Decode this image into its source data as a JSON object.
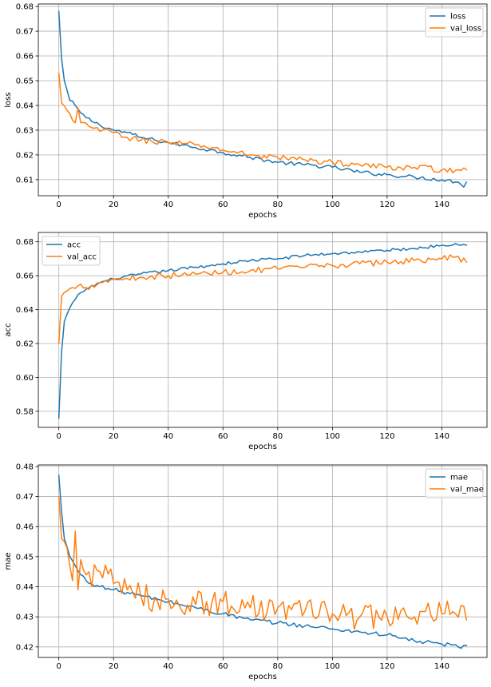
{
  "chart_data": [
    {
      "type": "line",
      "xlabel": "epochs",
      "ylabel": "loss",
      "xlim": [
        -7.5,
        156.5
      ],
      "ylim": [
        0.6035,
        0.681
      ],
      "xticks": [
        0,
        20,
        40,
        60,
        80,
        100,
        120,
        140
      ],
      "yticks": [
        0.61,
        0.62,
        0.63,
        0.64,
        0.65,
        0.66,
        0.67,
        0.68
      ],
      "ytick_labels": [
        "0.61",
        "0.62",
        "0.63",
        "0.64",
        "0.65",
        "0.66",
        "0.67",
        "0.68"
      ],
      "grid": true,
      "legend": "top-right",
      "series": [
        {
          "name": "loss",
          "color": "#1f77b4",
          "keypoints": [
            [
              0,
              0.678
            ],
            [
              1,
              0.659
            ],
            [
              2,
              0.65
            ],
            [
              4,
              0.642
            ],
            [
              6,
              0.64
            ],
            [
              8,
              0.637
            ],
            [
              10,
              0.635
            ],
            [
              15,
              0.632
            ],
            [
              20,
              0.63
            ],
            [
              25,
              0.629
            ],
            [
              30,
              0.627
            ],
            [
              35,
              0.626
            ],
            [
              40,
              0.625
            ],
            [
              45,
              0.624
            ],
            [
              50,
              0.623
            ],
            [
              55,
              0.622
            ],
            [
              60,
              0.621
            ],
            [
              70,
              0.619
            ],
            [
              80,
              0.617
            ],
            [
              90,
              0.616
            ],
            [
              100,
              0.615
            ],
            [
              110,
              0.613
            ],
            [
              120,
              0.612
            ],
            [
              130,
              0.611
            ],
            [
              140,
              0.61
            ],
            [
              146,
              0.609
            ],
            [
              147,
              0.608
            ],
            [
              148,
              0.607
            ],
            [
              149,
              0.609
            ]
          ],
          "noise": 0.0008
        },
        {
          "name": "val_loss",
          "color": "#ff7f0e",
          "keypoints": [
            [
              0,
              0.653
            ],
            [
              1,
              0.641
            ],
            [
              3,
              0.638
            ],
            [
              5,
              0.634
            ],
            [
              6,
              0.633
            ],
            [
              7,
              0.639
            ],
            [
              8,
              0.633
            ],
            [
              12,
              0.631
            ],
            [
              16,
              0.63
            ],
            [
              20,
              0.629
            ],
            [
              25,
              0.627
            ],
            [
              30,
              0.626
            ],
            [
              40,
              0.625
            ],
            [
              50,
              0.624
            ],
            [
              60,
              0.622
            ],
            [
              70,
              0.62
            ],
            [
              80,
              0.619
            ],
            [
              90,
              0.618
            ],
            [
              100,
              0.617
            ],
            [
              110,
              0.616
            ],
            [
              120,
              0.615
            ],
            [
              130,
              0.615
            ],
            [
              140,
              0.614
            ],
            [
              146,
              0.614
            ],
            [
              149,
              0.614
            ]
          ],
          "noise": 0.0012
        }
      ]
    },
    {
      "type": "line",
      "xlabel": "epochs",
      "ylabel": "acc",
      "xlim": [
        -7.5,
        156.5
      ],
      "ylim": [
        0.5705,
        0.6855
      ],
      "xticks": [
        0,
        20,
        40,
        60,
        80,
        100,
        120,
        140
      ],
      "yticks": [
        0.58,
        0.6,
        0.62,
        0.64,
        0.66,
        0.68
      ],
      "ytick_labels": [
        "0.58",
        "0.60",
        "0.62",
        "0.64",
        "0.66",
        "0.68"
      ],
      "grid": true,
      "legend": "top-left",
      "series": [
        {
          "name": "acc",
          "color": "#1f77b4",
          "keypoints": [
            [
              0,
              0.576
            ],
            [
              1,
              0.615
            ],
            [
              2,
              0.633
            ],
            [
              4,
              0.641
            ],
            [
              6,
              0.646
            ],
            [
              8,
              0.65
            ],
            [
              10,
              0.652
            ],
            [
              15,
              0.656
            ],
            [
              20,
              0.658
            ],
            [
              30,
              0.661
            ],
            [
              40,
              0.663
            ],
            [
              50,
              0.665
            ],
            [
              60,
              0.667
            ],
            [
              70,
              0.669
            ],
            [
              80,
              0.67
            ],
            [
              90,
              0.672
            ],
            [
              100,
              0.673
            ],
            [
              110,
              0.674
            ],
            [
              120,
              0.675
            ],
            [
              130,
              0.676
            ],
            [
              140,
              0.678
            ],
            [
              145,
              0.679
            ],
            [
              149,
              0.678
            ]
          ],
          "noise": 0.0009
        },
        {
          "name": "val_acc",
          "color": "#ff7f0e",
          "keypoints": [
            [
              0,
              0.62
            ],
            [
              1,
              0.648
            ],
            [
              3,
              0.651
            ],
            [
              5,
              0.653
            ],
            [
              8,
              0.655
            ],
            [
              10,
              0.653
            ],
            [
              15,
              0.656
            ],
            [
              20,
              0.658
            ],
            [
              30,
              0.659
            ],
            [
              40,
              0.66
            ],
            [
              50,
              0.661
            ],
            [
              60,
              0.662
            ],
            [
              70,
              0.663
            ],
            [
              80,
              0.664
            ],
            [
              90,
              0.665
            ],
            [
              100,
              0.666
            ],
            [
              110,
              0.667
            ],
            [
              120,
              0.668
            ],
            [
              130,
              0.669
            ],
            [
              140,
              0.67
            ],
            [
              145,
              0.671
            ],
            [
              149,
              0.668
            ]
          ],
          "noise": 0.0018
        }
      ]
    },
    {
      "type": "line",
      "xlabel": "epochs",
      "ylabel": "mae",
      "xlim": [
        -7.5,
        156.5
      ],
      "ylim": [
        0.4165,
        0.4805
      ],
      "xticks": [
        0,
        20,
        40,
        60,
        80,
        100,
        120,
        140
      ],
      "yticks": [
        0.42,
        0.43,
        0.44,
        0.45,
        0.46,
        0.47,
        0.48
      ],
      "ytick_labels": [
        "0.42",
        "0.43",
        "0.44",
        "0.45",
        "0.46",
        "0.47",
        "0.48"
      ],
      "grid": true,
      "legend": "top-right",
      "series": [
        {
          "name": "mae",
          "color": "#1f77b4",
          "keypoints": [
            [
              0,
              0.477
            ],
            [
              1,
              0.465
            ],
            [
              2,
              0.456
            ],
            [
              4,
              0.45
            ],
            [
              6,
              0.447
            ],
            [
              8,
              0.444
            ],
            [
              10,
              0.442
            ],
            [
              15,
              0.44
            ],
            [
              20,
              0.439
            ],
            [
              30,
              0.437
            ],
            [
              40,
              0.435
            ],
            [
              50,
              0.433
            ],
            [
              60,
              0.431
            ],
            [
              70,
              0.429
            ],
            [
              80,
              0.428
            ],
            [
              90,
              0.427
            ],
            [
              100,
              0.426
            ],
            [
              110,
              0.425
            ],
            [
              120,
              0.424
            ],
            [
              130,
              0.422
            ],
            [
              140,
              0.421
            ],
            [
              146,
              0.42
            ],
            [
              149,
              0.4205
            ]
          ],
          "noise": 0.0007
        },
        {
          "name": "val_mae",
          "color": "#ff7f0e",
          "keypoints": [
            [
              0,
              0.47
            ],
            [
              1,
              0.456
            ],
            [
              2,
              0.455
            ],
            [
              4,
              0.447
            ],
            [
              5,
              0.442
            ],
            [
              6,
              0.4585
            ],
            [
              7,
              0.439
            ],
            [
              8,
              0.449
            ],
            [
              10,
              0.444
            ],
            [
              15,
              0.445
            ],
            [
              20,
              0.441
            ],
            [
              25,
              0.439
            ],
            [
              30,
              0.437
            ],
            [
              35,
              0.436
            ],
            [
              40,
              0.436
            ],
            [
              50,
              0.434
            ],
            [
              60,
              0.435
            ],
            [
              70,
              0.433
            ],
            [
              80,
              0.433
            ],
            [
              90,
              0.432
            ],
            [
              100,
              0.431
            ],
            [
              110,
              0.43
            ],
            [
              120,
              0.43
            ],
            [
              130,
              0.43
            ],
            [
              140,
              0.431
            ],
            [
              145,
              0.431
            ],
            [
              149,
              0.429
            ]
          ],
          "noise": 0.0045
        }
      ]
    }
  ]
}
